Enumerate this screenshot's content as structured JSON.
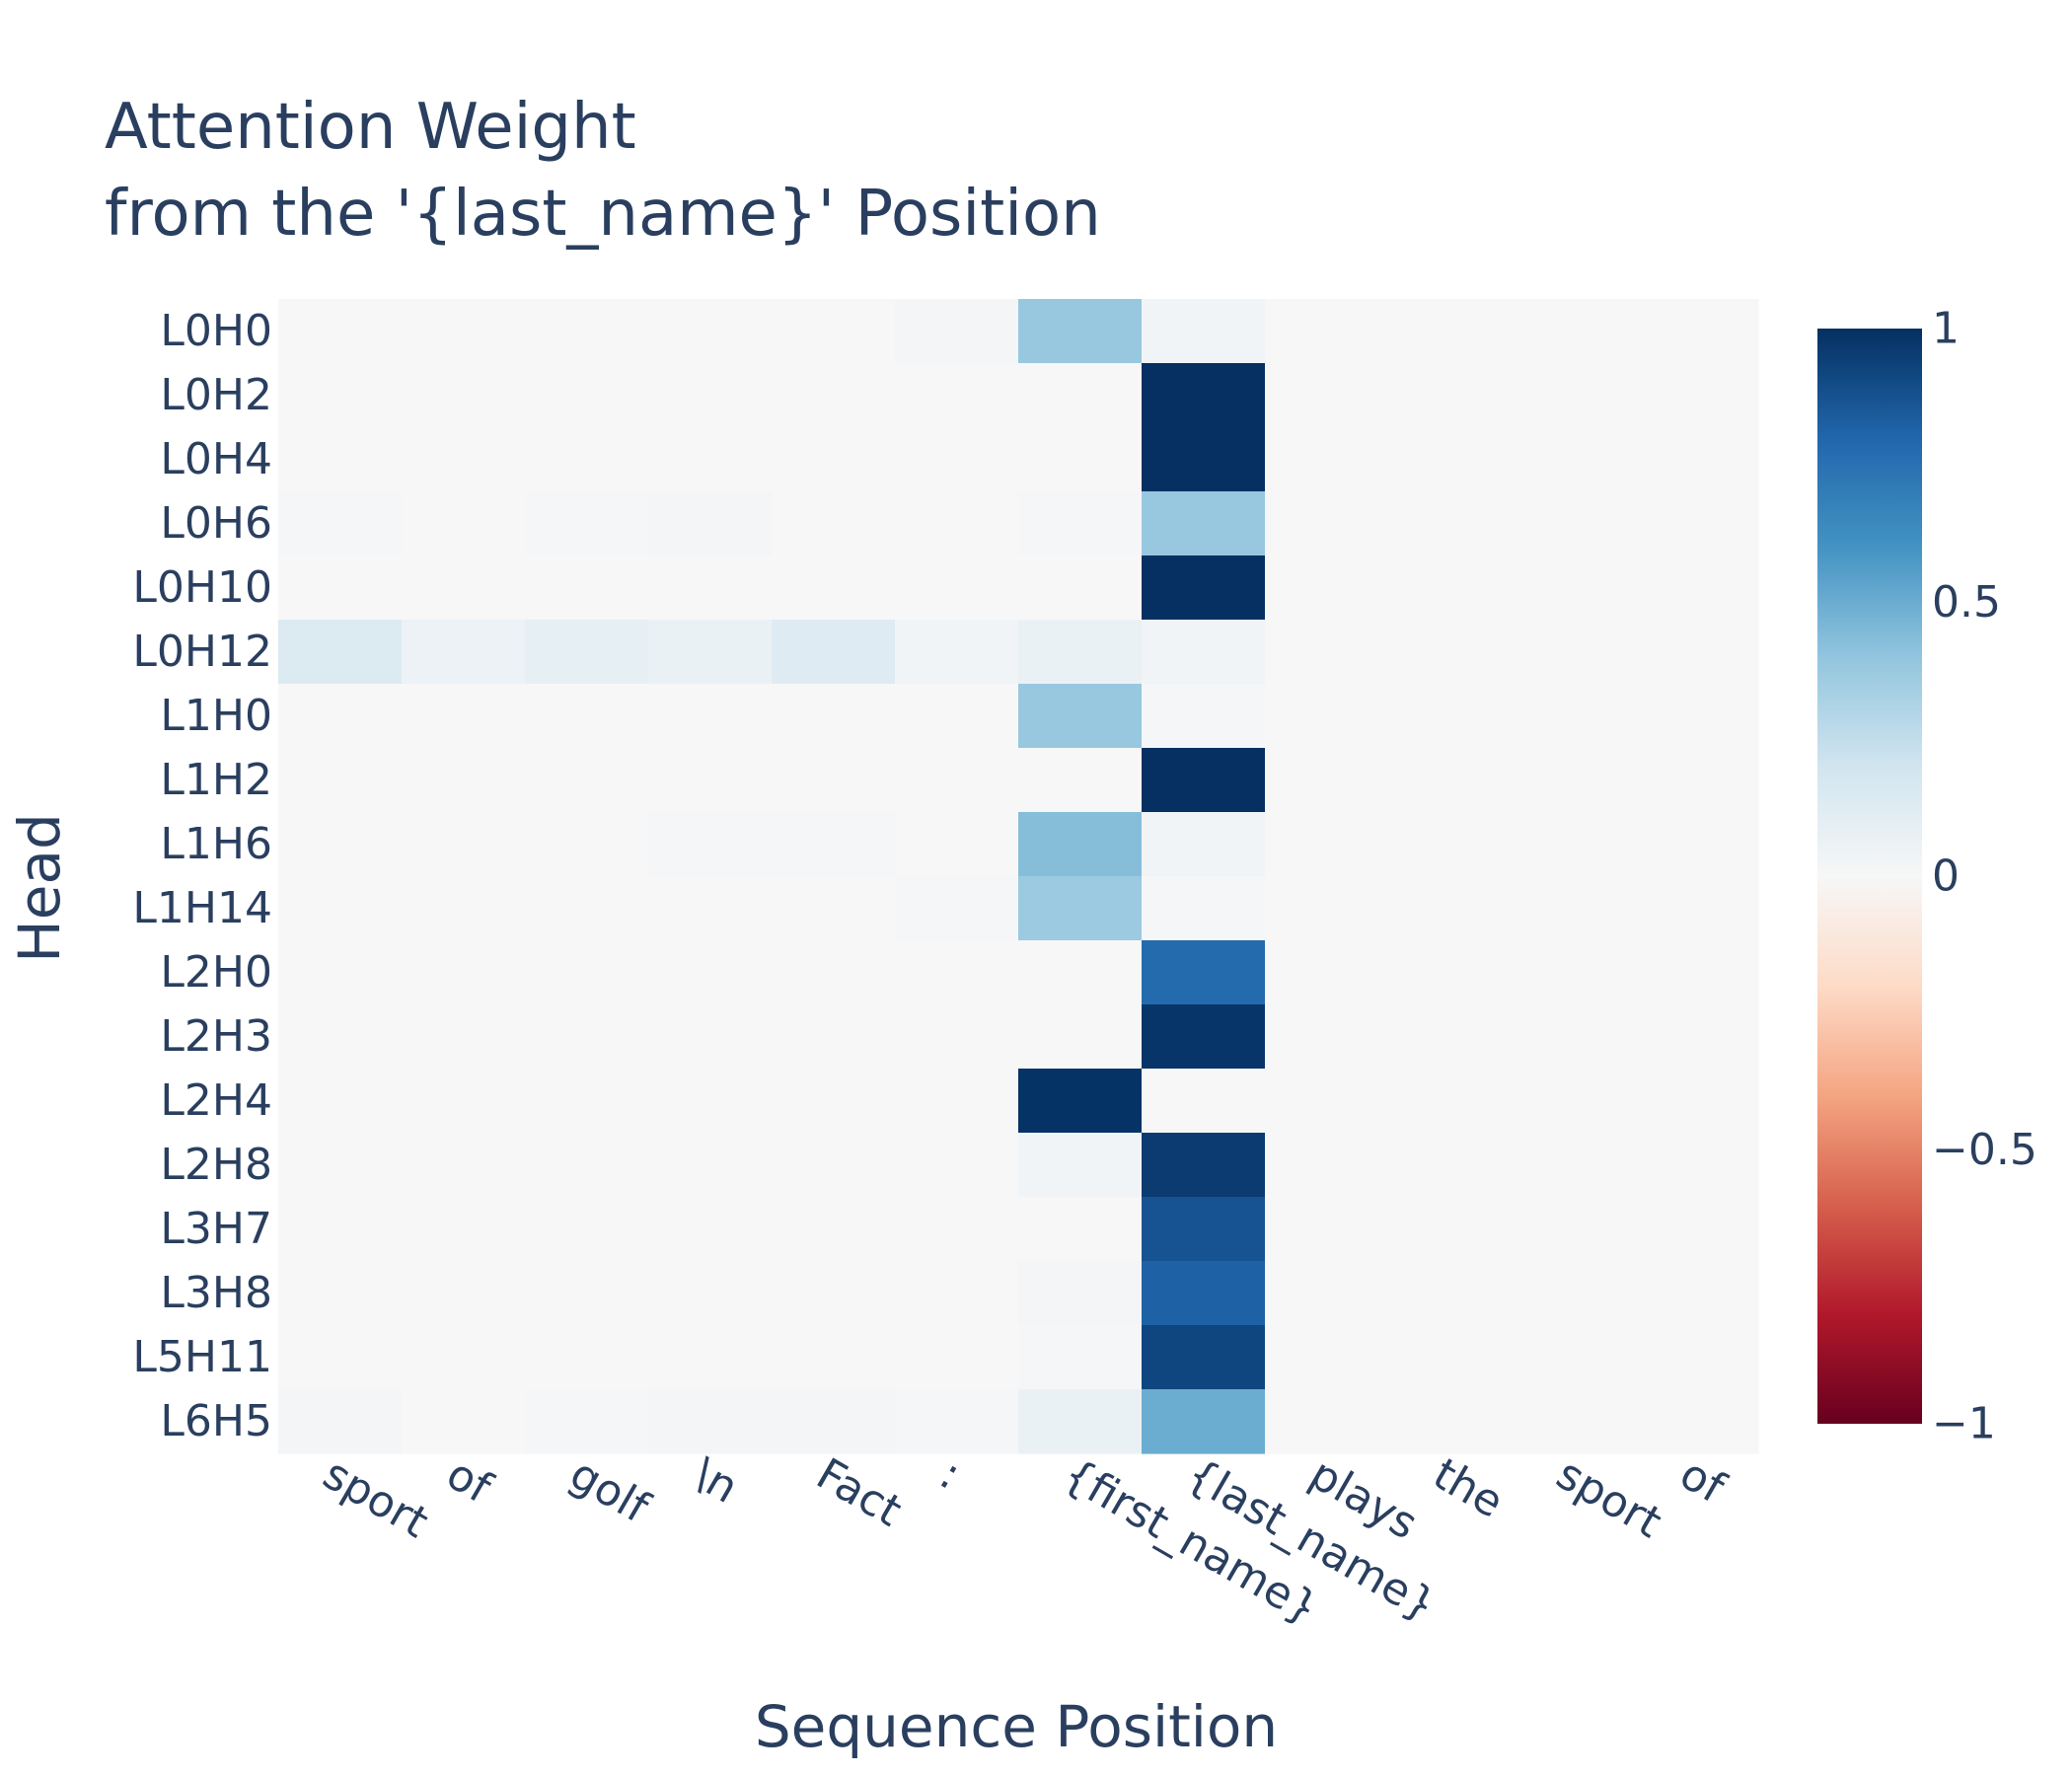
{
  "chart_data": {
    "type": "heatmap",
    "title": "Attention Weight",
    "subtitle": "from the '{last_name}' Position",
    "xlabel": "Sequence Position",
    "ylabel": "Head",
    "x": [
      "sport",
      "of",
      "golf",
      "\\n",
      "Fact",
      ":",
      "{first_name}",
      "{last_name}",
      "plays",
      "the",
      "sport",
      "of"
    ],
    "y": [
      "L0H0",
      "L0H2",
      "L0H4",
      "L0H6",
      "L0H10",
      "L0H12",
      "L1H0",
      "L1H2",
      "L1H6",
      "L1H14",
      "L2H0",
      "L2H3",
      "L2H4",
      "L2H8",
      "L3H7",
      "L3H8",
      "L5H11",
      "L6H5"
    ],
    "z": [
      [
        0,
        0,
        0,
        0,
        0,
        0.02,
        0.38,
        0.03,
        0,
        0,
        0,
        0
      ],
      [
        0,
        0,
        0,
        0,
        0,
        0,
        0,
        1.0,
        0,
        0,
        0,
        0
      ],
      [
        0,
        0,
        0,
        0,
        0,
        0,
        0,
        1.0,
        0,
        0,
        0,
        0
      ],
      [
        0.01,
        0,
        0.01,
        0.02,
        0,
        0,
        0.01,
        0.38,
        0,
        0,
        0,
        0
      ],
      [
        0,
        0,
        0,
        0,
        0,
        0,
        0,
        1.0,
        0,
        0,
        0,
        0
      ],
      [
        0.14,
        0.06,
        0.09,
        0.07,
        0.13,
        0.03,
        0.07,
        0.03,
        0,
        0,
        0,
        0
      ],
      [
        0,
        0,
        0,
        0,
        0,
        0,
        0.38,
        0.01,
        0,
        0,
        0,
        0
      ],
      [
        0,
        0,
        0,
        0,
        0,
        0,
        0,
        1.0,
        0,
        0,
        0,
        0
      ],
      [
        0,
        0,
        0,
        0.01,
        0.01,
        0,
        0.43,
        0.03,
        0,
        0,
        0,
        0
      ],
      [
        0,
        0,
        0,
        0,
        0,
        0.01,
        0.37,
        0.01,
        0,
        0,
        0,
        0
      ],
      [
        0,
        0,
        0,
        0,
        0,
        0,
        0,
        0.78,
        0,
        0,
        0,
        0
      ],
      [
        0,
        0,
        0,
        0,
        0,
        0,
        0,
        0.98,
        0,
        0,
        0,
        0
      ],
      [
        0,
        0,
        0,
        0,
        0,
        0,
        0.99,
        0,
        0,
        0,
        0,
        0
      ],
      [
        0,
        0,
        0,
        0,
        0,
        0,
        0.03,
        0.96,
        0,
        0,
        0,
        0
      ],
      [
        0,
        0,
        0,
        0,
        0,
        0,
        0,
        0.87,
        0,
        0,
        0,
        0
      ],
      [
        0,
        0,
        0,
        0,
        0,
        0,
        0.02,
        0.82,
        0,
        0,
        0,
        0
      ],
      [
        0,
        0,
        0,
        0,
        0,
        0,
        0.01,
        0.92,
        0,
        0,
        0,
        0
      ],
      [
        0.02,
        0,
        0.01,
        0.02,
        0.02,
        0.01,
        0.07,
        0.5,
        0,
        0,
        0,
        0
      ]
    ],
    "zlim": [
      -1,
      1
    ],
    "colorscale": "RdBu",
    "colorbar_ticks": [
      {
        "value": 1,
        "label": "1"
      },
      {
        "value": 0.5,
        "label": "0.5"
      },
      {
        "value": 0,
        "label": "0"
      },
      {
        "value": -0.5,
        "label": "−0.5"
      },
      {
        "value": -1,
        "label": "−1"
      }
    ],
    "text_color": "#2a3f5f"
  }
}
